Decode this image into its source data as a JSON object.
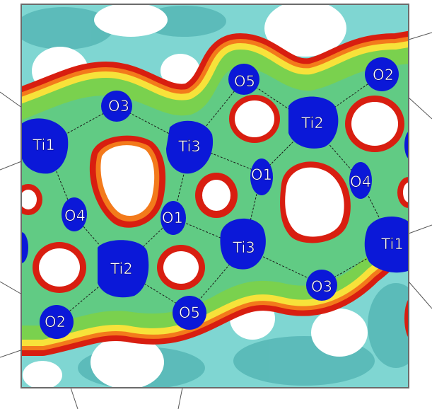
{
  "figure": {
    "colors": {
      "background_surface": "#7fd6d2",
      "dark_surface": "#3fa6a6",
      "band_red": "#d81e10",
      "band_orange": "#f37a1b",
      "band_yellow": "#f7e23a",
      "band_green": "#7ad14e",
      "band_cyan": "#43c3c8",
      "atom_core": "#0b18d8",
      "void": "#ffffff",
      "frame": "#6b6b6b"
    },
    "atoms": [
      {
        "id": "ti1a",
        "label": "Ti1"
      },
      {
        "id": "o3a",
        "label": "O3"
      },
      {
        "id": "ti3a",
        "label": "Ti3"
      },
      {
        "id": "o5a",
        "label": "O5"
      },
      {
        "id": "ti2a",
        "label": "Ti2"
      },
      {
        "id": "o2a",
        "label": "O2"
      },
      {
        "id": "o1a",
        "label": "O1"
      },
      {
        "id": "o4a",
        "label": "O4"
      },
      {
        "id": "o4b",
        "label": "O4"
      },
      {
        "id": "o1b",
        "label": "O1"
      },
      {
        "id": "ti3b",
        "label": "Ti3"
      },
      {
        "id": "ti1b",
        "label": "Ti1"
      },
      {
        "id": "ti2b",
        "label": "Ti2"
      },
      {
        "id": "o3b",
        "label": "O3"
      },
      {
        "id": "o2b",
        "label": "O2"
      },
      {
        "id": "o5b",
        "label": "O5"
      }
    ]
  }
}
